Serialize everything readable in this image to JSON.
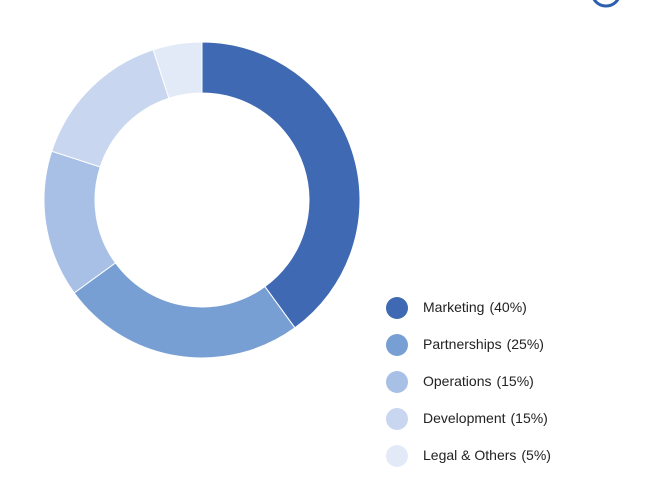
{
  "chart_data": {
    "type": "donut",
    "categories": [
      "Marketing",
      "Partnerships",
      "Operations",
      "Development",
      "Legal & Others"
    ],
    "values": [
      40,
      25,
      15,
      15,
      5
    ],
    "value_labels": [
      "(40%)",
      "(25%)",
      "(15%)",
      "(15%)",
      "(5%)"
    ],
    "colors": [
      "#3f69b3",
      "#789fd3",
      "#a8c0e6",
      "#c8d7ef",
      "#e3eaf7"
    ],
    "legend": "bottom-right"
  }
}
